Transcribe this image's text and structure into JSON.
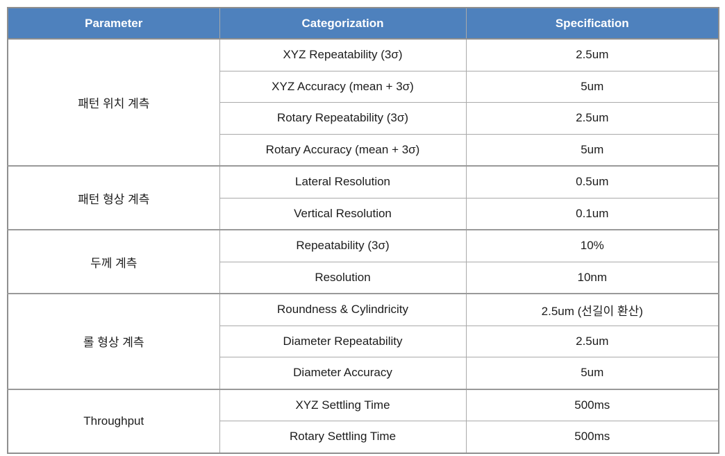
{
  "colors": {
    "header_bg": "#4e81bd",
    "header_text": "#ffffff",
    "grid_line": "#a9a9a9",
    "outer_border": "#8f8f8f",
    "body_text": "#1c1c1c"
  },
  "table": {
    "columns": [
      {
        "id": "parameter",
        "label": "Parameter"
      },
      {
        "id": "categorization",
        "label": "Categorization"
      },
      {
        "id": "specification",
        "label": "Specification"
      }
    ],
    "groups": [
      {
        "parameter": "패턴 위치 계측",
        "rows": [
          {
            "categorization": "XYZ Repeatability (3σ)",
            "specification": "2.5um"
          },
          {
            "categorization": "XYZ Accuracy (mean + 3σ)",
            "specification": "5um"
          },
          {
            "categorization": "Rotary Repeatability (3σ)",
            "specification": "2.5um"
          },
          {
            "categorization": "Rotary Accuracy (mean + 3σ)",
            "specification": "5um"
          }
        ]
      },
      {
        "parameter": "패턴 형상 계측",
        "rows": [
          {
            "categorization": "Lateral Resolution",
            "specification": "0.5um"
          },
          {
            "categorization": "Vertical Resolution",
            "specification": "0.1um"
          }
        ]
      },
      {
        "parameter": "두께 계측",
        "rows": [
          {
            "categorization": "Repeatability (3σ)",
            "specification": "10%"
          },
          {
            "categorization": "Resolution",
            "specification": "10nm"
          }
        ]
      },
      {
        "parameter": "롤 형상 계측",
        "rows": [
          {
            "categorization": "Roundness & Cylindricity",
            "specification": "2.5um (선길이 환산)"
          },
          {
            "categorization": "Diameter Repeatability",
            "specification": "2.5um"
          },
          {
            "categorization": "Diameter Accuracy",
            "specification": "5um"
          }
        ]
      },
      {
        "parameter": "Throughput",
        "rows": [
          {
            "categorization": "XYZ Settling Time",
            "specification": "500ms"
          },
          {
            "categorization": "Rotary Settling Time",
            "specification": "500ms"
          }
        ]
      }
    ]
  }
}
